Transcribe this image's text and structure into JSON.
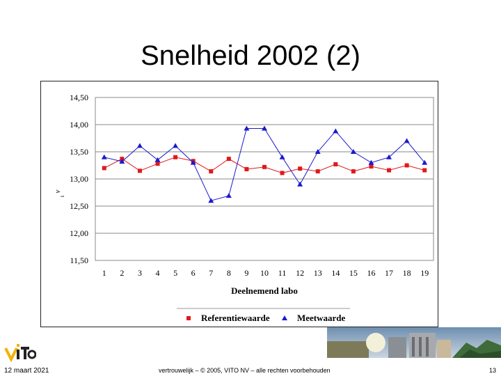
{
  "slide": {
    "title": "Snelheid 2002 (2)",
    "date": "12 maart 2021",
    "confidential": "vertrouwelijk – © 2005, VITO NV – alle rechten voorbehouden",
    "page_number": "13",
    "logo_icon": "vito-logo-icon",
    "banner_icon": "city-landscape-banner-icon"
  },
  "chart_data": {
    "type": "line",
    "title": "",
    "xlabel": "Deelnemend labo",
    "ylabel": "v",
    "ylabel_sub": "i",
    "ylim": [
      11.5,
      14.5
    ],
    "yticks": [
      11.5,
      12.0,
      12.5,
      13.0,
      13.5,
      14.0,
      14.5
    ],
    "ytick_labels": [
      "11,50",
      "12,00",
      "12,50",
      "13,00",
      "13,50",
      "14,00",
      "14,50"
    ],
    "categories": [
      "1",
      "2",
      "3",
      "4",
      "5",
      "6",
      "7",
      "8",
      "9",
      "10",
      "11",
      "12",
      "13",
      "14",
      "15",
      "16",
      "17",
      "18",
      "19"
    ],
    "grid": "horizontal",
    "legend_position": "bottom",
    "series": [
      {
        "name": "Referentiewaarde",
        "marker": "square",
        "color": "#e0191b",
        "values": [
          13.2,
          13.37,
          13.15,
          13.28,
          13.4,
          13.33,
          13.14,
          13.37,
          13.18,
          13.22,
          13.11,
          13.19,
          13.14,
          13.27,
          13.14,
          13.23,
          13.16,
          13.25,
          13.16
        ]
      },
      {
        "name": "Meetwaarde",
        "marker": "triangle",
        "color": "#1a1acc",
        "values": [
          13.4,
          13.32,
          13.61,
          13.35,
          13.61,
          13.3,
          12.6,
          12.69,
          13.93,
          13.93,
          13.4,
          12.9,
          13.5,
          13.88,
          13.5,
          13.3,
          13.4,
          13.7,
          13.3
        ]
      }
    ]
  }
}
